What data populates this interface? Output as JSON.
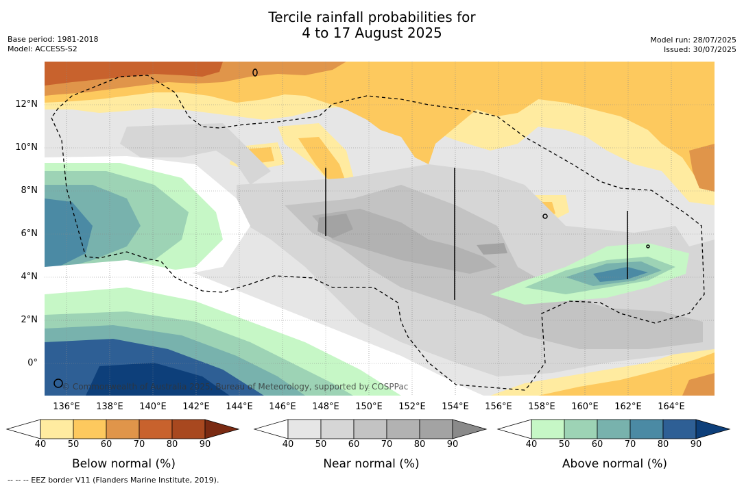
{
  "title_line1": "Tercile rainfall probabilities for",
  "title_line2": "4 to 17 August 2025",
  "base_period": "Base period: 1981-2018",
  "model": "Model: ACCESS-S2",
  "model_run": "Model run: 28/07/2025",
  "issued": "Issued: 30/07/2025",
  "lon_ticks": [
    "136°E",
    "138°E",
    "140°E",
    "142°E",
    "144°E",
    "146°E",
    "148°E",
    "150°E",
    "152°E",
    "154°E",
    "156°E",
    "158°E",
    "160°E",
    "162°E",
    "164°E"
  ],
  "lat_ticks": [
    "12°N",
    "10°N",
    "8°N",
    "6°N",
    "4°N",
    "2°N",
    "0°"
  ],
  "credit": "© Commonwealth of Australia 2025, Bureau of Meteorology, supported by COSPPac",
  "colorbars": [
    {
      "title": "Below normal (%)",
      "labels": [
        "40",
        "50",
        "60",
        "70",
        "80",
        "90"
      ],
      "colors": [
        "#ffffff",
        "#ffeba0",
        "#fdc95e",
        "#e0954a",
        "#c8622d",
        "#a8481f",
        "#7a2a12"
      ]
    },
    {
      "title": "Near normal (%)",
      "labels": [
        "40",
        "50",
        "60",
        "70",
        "80",
        "90"
      ],
      "colors": [
        "#ffffff",
        "#e6e6e6",
        "#d6d6d6",
        "#c3c3c3",
        "#b2b2b2",
        "#a3a3a3",
        "#8a8a8a"
      ]
    },
    {
      "title": "Above normal (%)",
      "labels": [
        "40",
        "50",
        "60",
        "70",
        "80",
        "90"
      ],
      "colors": [
        "#ffffff",
        "#c6f7c6",
        "#9dd3b5",
        "#78b2ad",
        "#4b8aa4",
        "#2e5f95",
        "#0d3f7a"
      ]
    }
  ],
  "footnote": "--  --  -- EEZ border V11 (Flanders Marine Institute, 2019)."
}
